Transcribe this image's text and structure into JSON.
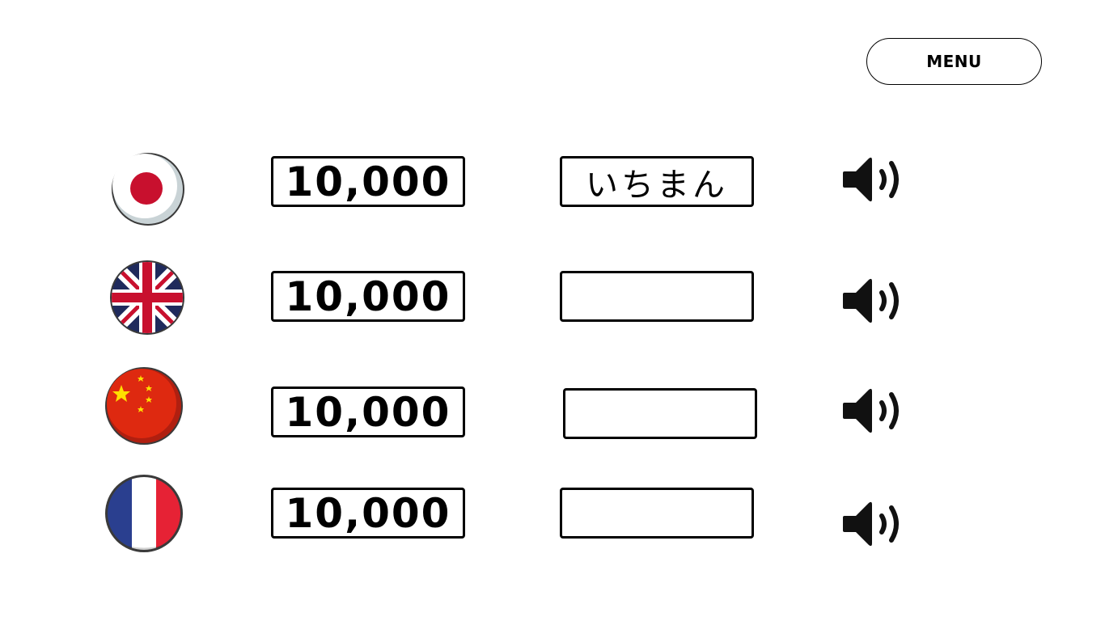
{
  "menu": {
    "label": "MENU"
  },
  "rows": [
    {
      "flag": "japan-flag",
      "number": "10,000",
      "word": "いちまん",
      "audio": "speaker-icon"
    },
    {
      "flag": "uk-flag",
      "number": "10,000",
      "word": "",
      "audio": "speaker-icon"
    },
    {
      "flag": "china-flag",
      "number": "10,000",
      "word": "",
      "audio": "speaker-icon"
    },
    {
      "flag": "france-flag",
      "number": "10,000",
      "word": "",
      "audio": "speaker-icon"
    }
  ],
  "colors": {
    "japan_red": "#c8102e",
    "uk_blue": "#1f2a5c",
    "uk_red": "#c8102e",
    "china_red": "#de2910",
    "china_yellow": "#ffde00",
    "france_blue": "#2a3f8f",
    "france_red": "#e62235",
    "speaker": "#111111"
  }
}
